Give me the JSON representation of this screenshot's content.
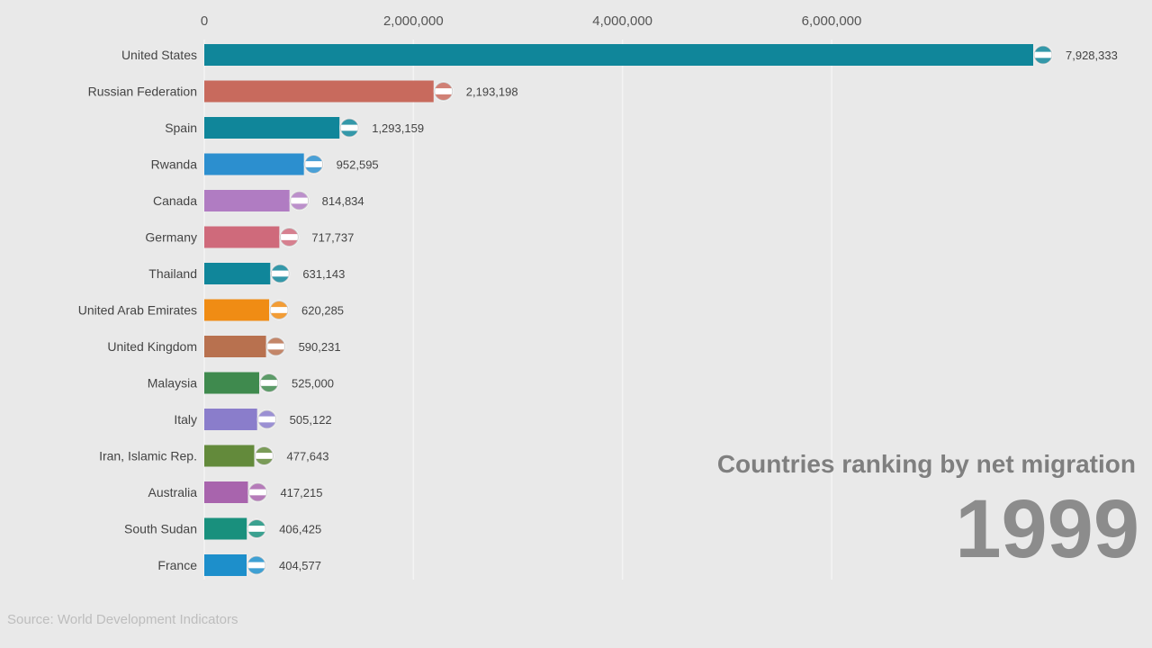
{
  "chart_data": {
    "type": "bar",
    "orientation": "horizontal",
    "title": "Countries ranking by net migration",
    "year": "1999",
    "source": "Source: World Development Indicators",
    "xlim": [
      0,
      8000000
    ],
    "x_ticks": [
      0,
      2000000,
      4000000,
      6000000
    ],
    "x_tick_labels": [
      "0",
      "2,000,000",
      "4,000,000",
      "6,000,000"
    ],
    "grid": true,
    "categories": [
      "United States",
      "Russian Federation",
      "Spain",
      "Rwanda",
      "Canada",
      "Germany",
      "Thailand",
      "United Arab Emirates",
      "United Kingdom",
      "Malaysia",
      "Italy",
      "Iran, Islamic Rep.",
      "Australia",
      "South Sudan",
      "France"
    ],
    "values": [
      7928333,
      2193198,
      1293159,
      952595,
      814834,
      717737,
      631143,
      620285,
      590231,
      525000,
      505122,
      477643,
      417215,
      406425,
      404577
    ],
    "value_labels": [
      "7,928,333",
      "2,193,198",
      "1,293,159",
      "952,595",
      "814,834",
      "717,737",
      "631,143",
      "620,285",
      "590,231",
      "525,000",
      "505,122",
      "477,643",
      "417,215",
      "406,425",
      "404,577"
    ],
    "colors": [
      "#10869a",
      "#c86a5d",
      "#10869a",
      "#2c8fcf",
      "#b07cc2",
      "#cf6a7b",
      "#10869a",
      "#f08c14",
      "#b8714f",
      "#3f8a4e",
      "#8a7dcb",
      "#638a3b",
      "#a864ad",
      "#19907d",
      "#1d8fcb"
    ],
    "flags": [
      "flag-us-icon",
      "flag-ru-icon",
      "flag-es-icon",
      "flag-rw-icon",
      "flag-ca-icon",
      "flag-de-icon",
      "flag-th-icon",
      "flag-ae-icon",
      "flag-gb-icon",
      "flag-my-icon",
      "flag-it-icon",
      "flag-ir-icon",
      "flag-au-icon",
      "flag-ss-icon",
      "flag-fr-icon"
    ]
  }
}
